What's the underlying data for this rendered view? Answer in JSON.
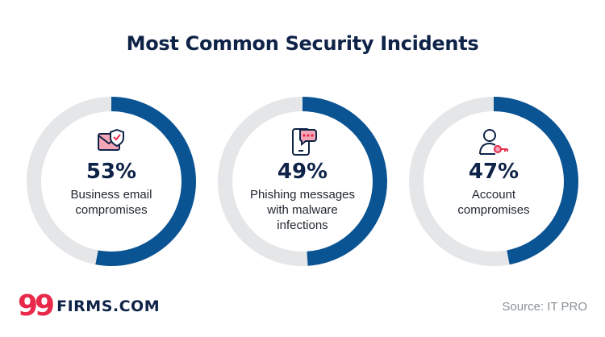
{
  "title": "Most Common Security Incidents",
  "chart_data": {
    "type": "pie",
    "title": "Most Common Security Incidents",
    "items": [
      {
        "value": 53,
        "label_pct": "53%",
        "label_line1": "Business email",
        "label_line2": "compromises",
        "label_line3": "",
        "icon": "envelope-shield-icon"
      },
      {
        "value": 49,
        "label_pct": "49%",
        "label_line1": "Phishing messages",
        "label_line2": "with malware",
        "label_line3": "infections",
        "icon": "phone-chat-icon"
      },
      {
        "value": 47,
        "label_pct": "47%",
        "label_line1": "Account",
        "label_line2": "compromises",
        "label_line3": "",
        "icon": "user-key-icon"
      }
    ],
    "colors": {
      "filled": "#0b5494",
      "remainder": "#e5e6e8"
    }
  },
  "logo": {
    "nines": "99",
    "word": "FIRMS.COM"
  },
  "source": "Source: IT PRO",
  "colors": {
    "title": "#0f2348",
    "accent_red": "#e8294a",
    "accent_pink": "#f4a5b6"
  }
}
